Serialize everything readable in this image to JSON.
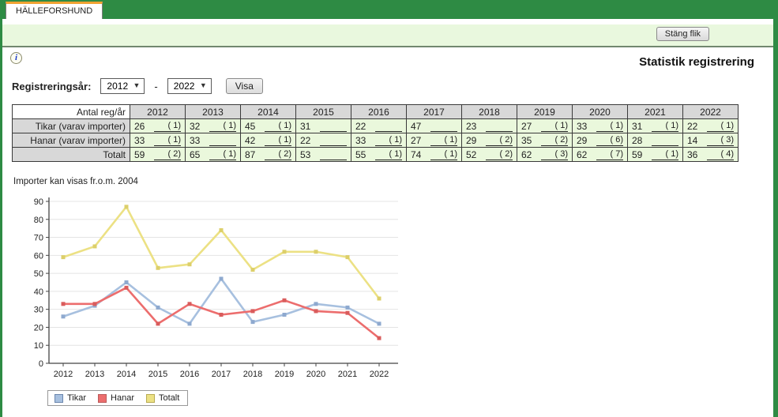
{
  "tab": {
    "label": "HÄLLEFORSHUND"
  },
  "banner": {
    "close_button": "Stäng flik"
  },
  "page": {
    "title": "Statistik registrering",
    "info_icon_glyph": "i"
  },
  "controls": {
    "label": "Registreringsår:",
    "from_year": "2012",
    "to_year": "2022",
    "separator": "-",
    "show_button": "Visa"
  },
  "table": {
    "corner_header": "Antal reg/år",
    "years": [
      "2012",
      "2013",
      "2014",
      "2015",
      "2016",
      "2017",
      "2018",
      "2019",
      "2020",
      "2021",
      "2022"
    ],
    "rows": [
      {
        "label": "Tikar (varav importer)",
        "values": [
          26,
          32,
          45,
          31,
          22,
          47,
          23,
          27,
          33,
          31,
          22
        ],
        "imports": [
          1,
          1,
          1,
          null,
          null,
          null,
          null,
          1,
          1,
          1,
          1
        ]
      },
      {
        "label": "Hanar (varav importer)",
        "values": [
          33,
          33,
          42,
          22,
          33,
          27,
          29,
          35,
          29,
          28,
          14
        ],
        "imports": [
          1,
          null,
          1,
          null,
          1,
          1,
          2,
          2,
          6,
          null,
          3
        ]
      },
      {
        "label": "Totalt",
        "values": [
          59,
          65,
          87,
          53,
          55,
          74,
          52,
          62,
          62,
          59,
          36
        ],
        "imports": [
          2,
          1,
          2,
          null,
          1,
          1,
          2,
          3,
          7,
          1,
          4
        ]
      }
    ]
  },
  "note": "Importer kan visas fr.o.m. 2004",
  "chart_data": {
    "type": "line",
    "title": "",
    "xlabel": "",
    "ylabel": "",
    "x": [
      "2012",
      "2013",
      "2014",
      "2015",
      "2016",
      "2017",
      "2018",
      "2019",
      "2020",
      "2021",
      "2022"
    ],
    "series": [
      {
        "name": "Tikar",
        "values": [
          26,
          32,
          45,
          31,
          22,
          47,
          23,
          27,
          33,
          31,
          22
        ],
        "color": "#a7c0df",
        "marker": "#8ea9cf",
        "legend_border": "#6b86ad"
      },
      {
        "name": "Hanar",
        "values": [
          33,
          33,
          42,
          22,
          33,
          27,
          29,
          35,
          29,
          28,
          14
        ],
        "color": "#ec6d6d",
        "marker": "#d95c5c",
        "legend_border": "#bb5b5b"
      },
      {
        "name": "Totalt",
        "values": [
          59,
          65,
          87,
          53,
          55,
          74,
          52,
          62,
          62,
          59,
          36
        ],
        "color": "#ece184",
        "marker": "#dccf6a",
        "legend_border": "#b9ab52"
      }
    ],
    "ylim": [
      0,
      90
    ],
    "ytick_step": 10,
    "grid": true,
    "legend_position": "bottom-left"
  },
  "theme": {
    "header_green": "#2e8b44",
    "tab_accent_orange": "#f0a232",
    "banner_green": "#e9f8de",
    "cell_green": "#eaf8dc",
    "header_gray": "#d8d8d8",
    "grid_gray": "#e4e4e4",
    "axis_color": "#444444"
  }
}
